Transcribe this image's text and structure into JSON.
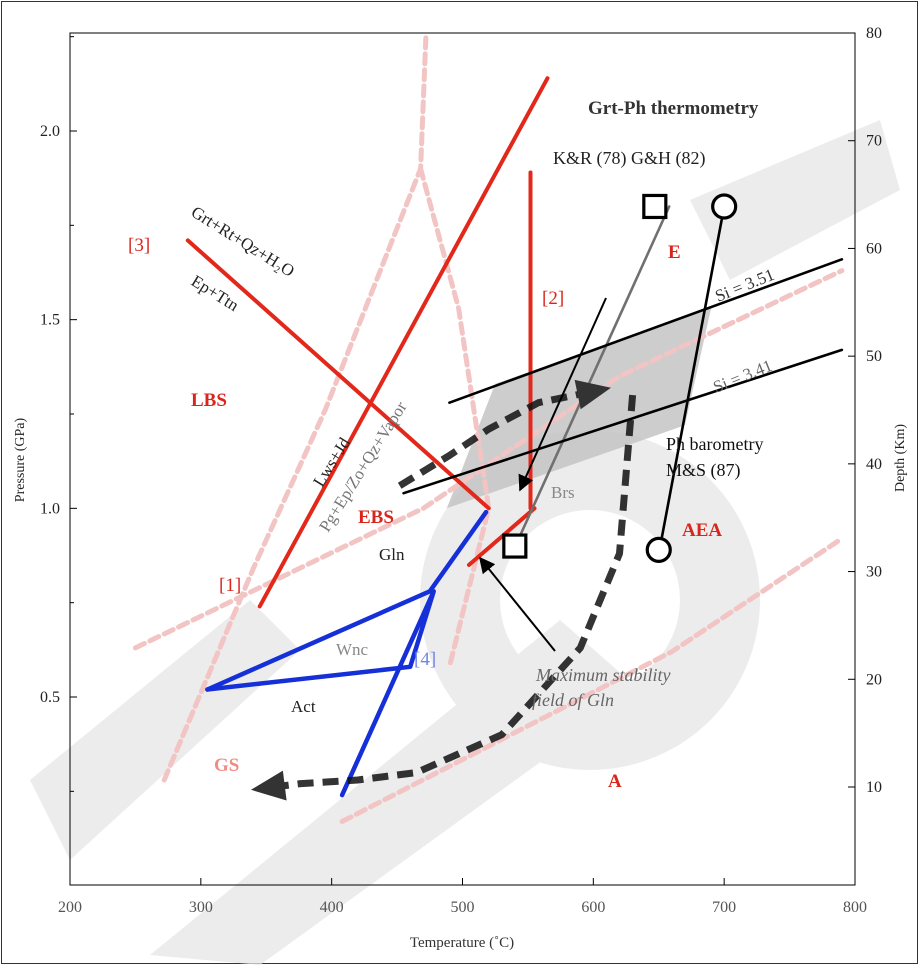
{
  "chart_data": {
    "type": "line",
    "xlabel": "Temperature (˚C)",
    "ylabel": "Pressure (GPa)",
    "ylabel_right": "Depth (Km)",
    "xlim": [
      200,
      800
    ],
    "ylim": [
      0.1,
      2.25
    ],
    "xticks": [
      "200",
      "300",
      "400",
      "500",
      "600",
      "700",
      "800"
    ],
    "yticks": [
      "0.5",
      "1.0",
      "1.5",
      "2.0"
    ],
    "yticks_right": [
      "10",
      "20",
      "30",
      "40",
      "50",
      "60",
      "70",
      "80"
    ],
    "grid": false,
    "colors": {
      "red": "#e2281a",
      "pink": "#f2c4c4",
      "blue": "#1530d8",
      "lightblue": "#6f86e6",
      "grey": "#707070",
      "black": "#000000",
      "field_red": "#d9261c"
    },
    "series": [
      {
        "name": "Grt+Rt+Qz+H2O / Ep+Ttn",
        "color": "red",
        "points": [
          [
            290,
            1.71
          ],
          [
            520,
            1.0
          ]
        ]
      },
      {
        "name": "Lws+Jd / Pg+Ep/Zo+Qz+Vapor",
        "color": "red",
        "points": [
          [
            345,
            0.74
          ],
          [
            565,
            2.14
          ]
        ]
      },
      {
        "name": "[2]",
        "color": "red",
        "points": [
          [
            552,
            1.89
          ],
          [
            552,
            1.0
          ]
        ]
      },
      {
        "name": "",
        "color": "red",
        "points": [
          [
            505,
            0.85
          ],
          [
            555,
            1.0
          ]
        ]
      },
      {
        "name": "",
        "color": "blue",
        "points": [
          [
            305,
            0.52
          ],
          [
            475,
            0.78
          ],
          [
            518,
            0.99
          ]
        ]
      },
      {
        "name": "",
        "color": "blue",
        "points": [
          [
            305,
            0.52
          ],
          [
            460,
            0.58
          ],
          [
            478,
            0.78
          ],
          [
            408,
            0.24
          ]
        ]
      },
      {
        "name": "K&R (78)",
        "color": "grey",
        "points": [
          [
            543,
            0.92
          ],
          [
            658,
            1.8
          ]
        ]
      },
      {
        "name": "G&H (82)",
        "color": "black",
        "points": [
          [
            650,
            0.88
          ],
          [
            700,
            1.8
          ]
        ]
      },
      {
        "name": "Si = 3.51",
        "color": "black",
        "points": [
          [
            490,
            1.28
          ],
          [
            790,
            1.66
          ]
        ]
      },
      {
        "name": "Si = 3.41",
        "color": "black",
        "points": [
          [
            455,
            1.04
          ],
          [
            790,
            1.42
          ]
        ]
      },
      {
        "name": "",
        "color": "pink",
        "points": [
          [
            250,
            0.63
          ],
          [
            470,
            1.0
          ],
          [
            620,
            1.35
          ],
          [
            790,
            1.63
          ]
        ]
      },
      {
        "name": "",
        "color": "pink",
        "points": [
          [
            272,
            0.28
          ],
          [
            340,
            0.84
          ],
          [
            395,
            1.26
          ],
          [
            468,
            1.9
          ],
          [
            472,
            2.25
          ]
        ]
      },
      {
        "name": "",
        "color": "pink",
        "points": [
          [
            468,
            1.9
          ],
          [
            497,
            1.53
          ],
          [
            520,
            1.0
          ],
          [
            490,
            0.58
          ]
        ]
      },
      {
        "name": "",
        "color": "pink",
        "points": [
          [
            408,
            0.17
          ],
          [
            520,
            0.37
          ],
          [
            660,
            0.62
          ],
          [
            790,
            0.92
          ]
        ]
      }
    ],
    "paths": [
      {
        "name": "prograde path",
        "points": [
          [
            630,
            1.3
          ],
          [
            620,
            0.88
          ],
          [
            590,
            0.63
          ],
          [
            530,
            0.4
          ],
          [
            465,
            0.3
          ],
          [
            420,
            0.28
          ],
          [
            375,
            0.27
          ],
          [
            352,
            0.26
          ]
        ]
      },
      {
        "name": "retrograde path",
        "points": [
          [
            452,
            1.06
          ],
          [
            490,
            1.14
          ],
          [
            520,
            1.21
          ],
          [
            558,
            1.28
          ],
          [
            600,
            1.31
          ]
        ]
      }
    ],
    "barometry_field": [
      [
        525,
        1.33
      ],
      [
        690,
        1.53
      ],
      [
        670,
        1.22
      ],
      [
        488,
        1.0
      ]
    ],
    "markers": [
      {
        "shape": "square",
        "points": [
          [
            540,
            0.9
          ],
          [
            647,
            1.8
          ]
        ]
      },
      {
        "shape": "circle",
        "points": [
          [
            700,
            1.8
          ],
          [
            650,
            0.89
          ]
        ]
      }
    ],
    "annotations": {
      "grt_ph_thermometry": "Grt-Ph thermometry",
      "kr_gh": "K&R (78)  G&H (82)",
      "label_e": "E",
      "label_2": "[2]",
      "label_3": "[3]",
      "grt_rt_qz_h2o": "Grt+Rt+Qz+H₂O",
      "ep_ttn": "Ep+Ttn",
      "si_351": "Si = 3.51",
      "si_341": "Si = 3.41",
      "lbs": "LBS",
      "lws_jd": "Lws+Jd",
      "pg_ep_zo": "Pg+Ep/Zo+Qz+Vapor",
      "ph_barometry": "Ph barometry",
      "ms87": "M&S (87)",
      "brs": "Brs",
      "ebs": "EBS",
      "aea": "AEA",
      "gln": "Gln",
      "label_1": "[1]",
      "wnc": "Wnc",
      "label_4": "[4]",
      "max_stab_1": "Maximum stability",
      "max_stab_2": "field of  Gln",
      "act": "Act",
      "gs": "GS",
      "a": "A"
    }
  }
}
